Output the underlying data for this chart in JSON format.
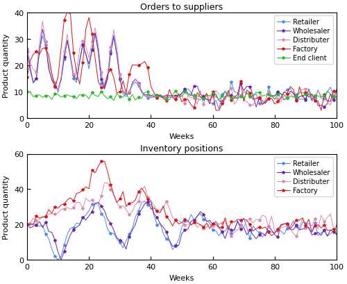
{
  "title1": "Orders to suppliers",
  "title2": "Inventory positions",
  "xlabel": "Weeks",
  "ylabel": "Product quantity",
  "ylim1": [
    0,
    40
  ],
  "ylim2": [
    0,
    60
  ],
  "yticks1": [
    0,
    10,
    20,
    30,
    40
  ],
  "yticks2": [
    0,
    20,
    40,
    60
  ],
  "xlim": [
    0,
    100
  ],
  "xticks": [
    0,
    20,
    40,
    60,
    80,
    100
  ],
  "colors": {
    "Retailer": "#4488ff",
    "Wholesaler": "#6622aa",
    "Distributer": "#dd88aa",
    "Factory": "#dd1111",
    "End client": "#22bb22"
  },
  "figsize": [
    5.0,
    4.1
  ],
  "dpi": 100
}
